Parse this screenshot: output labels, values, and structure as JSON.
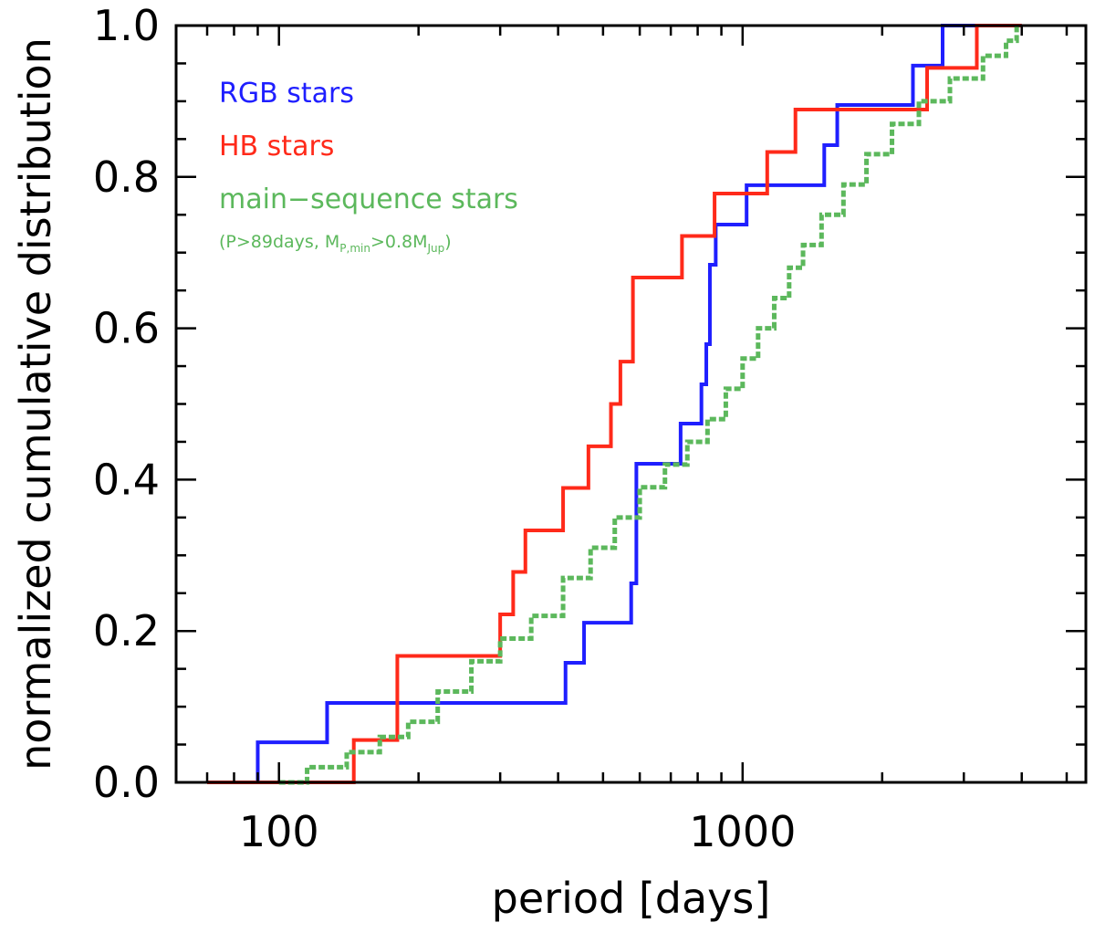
{
  "chart_data": {
    "type": "line",
    "step": true,
    "xlabel": "period [days]",
    "ylabel": "normalized cumulative distribution",
    "xscale": "log",
    "xlim": [
      60,
      5500
    ],
    "ylim": [
      0,
      1.0
    ],
    "xticks_major": [
      100,
      1000
    ],
    "xtick_labels": [
      "100",
      "1000"
    ],
    "yticks": [
      0.0,
      0.2,
      0.4,
      0.6,
      0.8,
      1.0
    ],
    "ytick_labels": [
      "0.0",
      "0.2",
      "0.4",
      "0.6",
      "0.8",
      "1.0"
    ],
    "legend_position": "top-left",
    "legend_note": {
      "prefix": "(P>89days, M",
      "sub1": "P,min",
      "mid": ">0.8M",
      "sub2": "Jup",
      "suffix": ")",
      "color": "#5cb85c"
    },
    "series": [
      {
        "name": "RGB stars",
        "color": "#1f1fff",
        "x_start": 70,
        "x_end": 4000,
        "x": [
          90,
          127,
          415,
          455,
          575,
          590,
          735,
          815,
          835,
          850,
          875,
          1020,
          1040,
          1500,
          1600,
          2330,
          2700
        ],
        "y": [
          0.053,
          0.105,
          0.158,
          0.211,
          0.263,
          0.421,
          0.474,
          0.526,
          0.579,
          0.684,
          0.737,
          0.789,
          0.789,
          0.842,
          0.895,
          0.947,
          1.0
        ]
      },
      {
        "name": "HB stars",
        "color": "#ff2a1a",
        "x_start": 70,
        "x_end": 4000,
        "x": [
          145,
          180,
          300,
          320,
          340,
          410,
          465,
          520,
          545,
          580,
          740,
          870,
          1130,
          1300,
          2500,
          3200
        ],
        "y": [
          0.056,
          0.167,
          0.222,
          0.278,
          0.333,
          0.389,
          0.444,
          0.5,
          0.556,
          0.667,
          0.722,
          0.778,
          0.833,
          0.889,
          0.944,
          1.0
        ]
      },
      {
        "name": "main−sequence stars",
        "color": "#5cb85c",
        "x_start": 100,
        "x_end": 3900,
        "x": [
          100,
          115,
          140,
          165,
          190,
          220,
          260,
          300,
          350,
          410,
          470,
          530,
          600,
          680,
          760,
          840,
          920,
          1000,
          1080,
          1170,
          1260,
          1350,
          1480,
          1650,
          1850,
          2100,
          2400,
          2800,
          3300,
          3700,
          3900
        ],
        "y": [
          0.0,
          0.02,
          0.04,
          0.06,
          0.08,
          0.12,
          0.16,
          0.19,
          0.22,
          0.27,
          0.31,
          0.35,
          0.39,
          0.42,
          0.45,
          0.48,
          0.52,
          0.56,
          0.6,
          0.64,
          0.68,
          0.71,
          0.75,
          0.79,
          0.83,
          0.87,
          0.9,
          0.93,
          0.96,
          0.98,
          1.0
        ]
      }
    ]
  }
}
